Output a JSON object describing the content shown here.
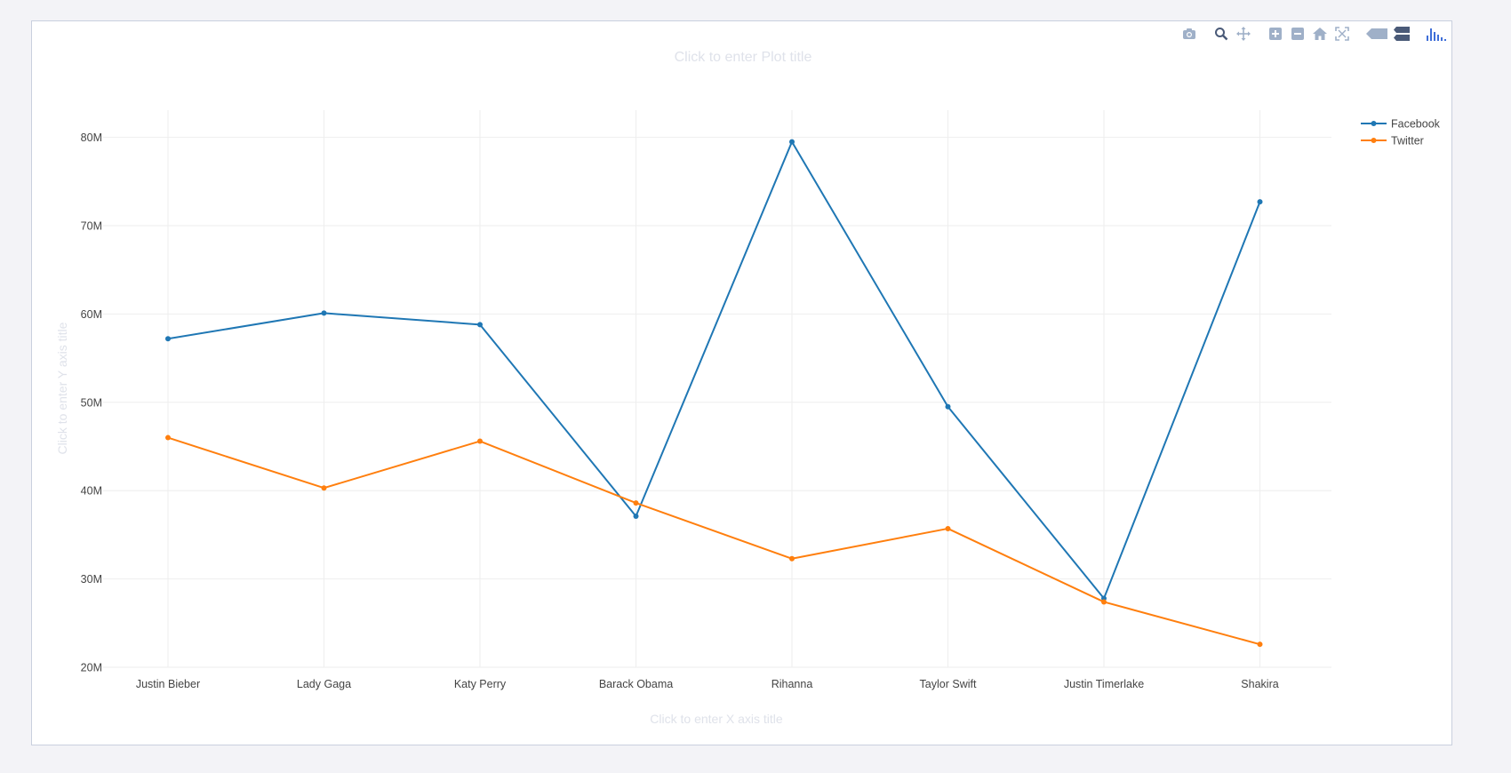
{
  "modebar": {
    "icons": [
      "camera-icon",
      "zoom-icon",
      "pan-icon",
      "zoom-in-icon",
      "zoom-out-icon",
      "home-icon",
      "autoscale-icon",
      "hover-closest-icon",
      "hover-compare-icon",
      "plotly-logo-icon"
    ],
    "icon_color": "#9fb0c8",
    "logo_color": "#3f6fd8"
  },
  "chart_data": {
    "type": "line",
    "title": "Click to enter Plot title",
    "xlabel": "Click to enter X axis title",
    "ylabel": "Click to enter Y axis title",
    "categories": [
      "Justin Bieber",
      "Lady Gaga",
      "Katy Perry",
      "Barack Obama",
      "Rihanna",
      "Taylor Swift",
      "Justin Timerlake",
      "Shakira"
    ],
    "ylim": [
      20000000,
      83000000
    ],
    "yticks": [
      20000000,
      30000000,
      40000000,
      50000000,
      60000000,
      70000000,
      80000000
    ],
    "ytick_labels": [
      "20M",
      "30M",
      "40M",
      "50M",
      "60M",
      "70M",
      "80M"
    ],
    "grid": true,
    "legend_position": "top-right",
    "series": [
      {
        "name": "Facebook",
        "color": "#1f77b4",
        "values": [
          57200000,
          60100000,
          58800000,
          37100000,
          79500000,
          49500000,
          27800000,
          72700000
        ]
      },
      {
        "name": "Twitter",
        "color": "#ff7f0e",
        "values": [
          46000000,
          40300000,
          45600000,
          38600000,
          32300000,
          35700000,
          27400000,
          22600000
        ]
      }
    ]
  }
}
